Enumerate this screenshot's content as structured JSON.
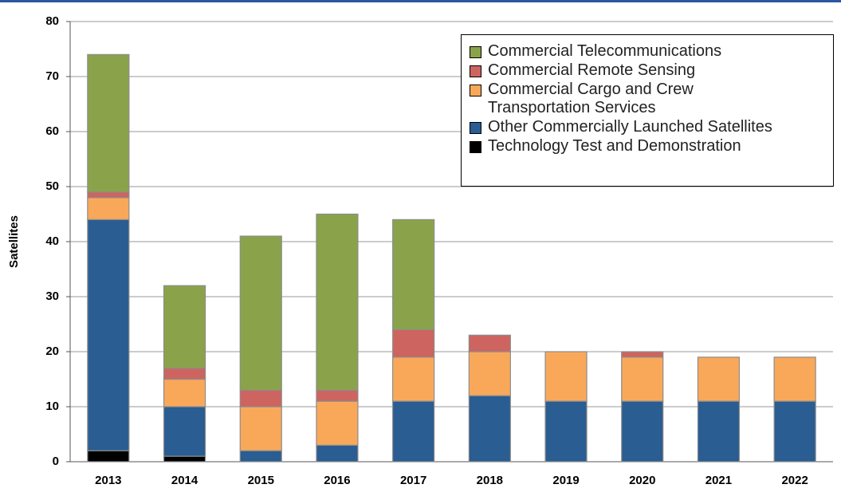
{
  "chart_data": {
    "type": "stacked_bar",
    "y_label": "Satellites",
    "categories": [
      "2013",
      "2014",
      "2015",
      "2016",
      "2017",
      "2018",
      "2019",
      "2020",
      "2021",
      "2022"
    ],
    "series": [
      {
        "name": "Technology Test and Demonstration",
        "color": "#000000",
        "values": [
          2,
          1,
          0,
          0,
          0,
          0,
          0,
          0,
          0,
          0
        ]
      },
      {
        "name": "Other Commercially Launched Satellites",
        "color": "#2a5d91",
        "values": [
          42,
          9,
          2,
          3,
          11,
          12,
          11,
          11,
          11,
          11
        ]
      },
      {
        "name": "Commercial Cargo and Crew Transportation Services",
        "color": "#f9a85a",
        "values": [
          4,
          5,
          8,
          8,
          8,
          8,
          9,
          8,
          8,
          8
        ]
      },
      {
        "name": "Commercial Remote Sensing",
        "color": "#cd6460",
        "values": [
          1,
          2,
          3,
          2,
          5,
          3,
          0,
          1,
          0,
          0
        ]
      },
      {
        "name": "Commercial Telecommunications",
        "color": "#8aa34a",
        "values": [
          25,
          15,
          28,
          32,
          20,
          0,
          0,
          0,
          0,
          0
        ]
      }
    ],
    "ylim": [
      0,
      80
    ],
    "yticks": [
      0,
      10,
      20,
      30,
      40,
      50,
      60,
      70,
      80
    ],
    "grid": true,
    "legend": "top-right"
  }
}
